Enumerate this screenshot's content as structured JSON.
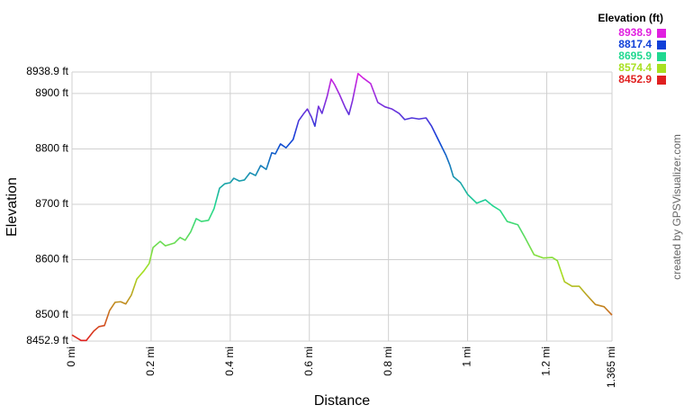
{
  "chart_data": {
    "type": "line",
    "x_label": "Distance",
    "y_label": "Elevation",
    "credit": "created by GPSVisualizer.com",
    "color_scale": {
      "title": "Elevation (ft)",
      "stops": [
        {
          "value": 8938.9,
          "color": "#e020e0"
        },
        {
          "value": 8817.4,
          "color": "#1040d8"
        },
        {
          "value": 8695.9,
          "color": "#20d890"
        },
        {
          "value": 8574.4,
          "color": "#a8e020"
        },
        {
          "value": 8452.9,
          "color": "#e02020"
        }
      ]
    },
    "x": [
      0,
      0.023,
      0.036,
      0.055,
      0.068,
      0.082,
      0.095,
      0.109,
      0.123,
      0.136,
      0.15,
      0.164,
      0.182,
      0.195,
      0.205,
      0.223,
      0.236,
      0.259,
      0.273,
      0.286,
      0.3,
      0.314,
      0.327,
      0.345,
      0.359,
      0.373,
      0.386,
      0.4,
      0.409,
      0.423,
      0.436,
      0.45,
      0.464,
      0.477,
      0.491,
      0.505,
      0.514,
      0.527,
      0.541,
      0.559,
      0.573,
      0.586,
      0.595,
      0.605,
      0.614,
      0.623,
      0.632,
      0.645,
      0.655,
      0.664,
      0.677,
      0.691,
      0.7,
      0.709,
      0.723,
      0.736,
      0.755,
      0.773,
      0.791,
      0.809,
      0.827,
      0.841,
      0.859,
      0.877,
      0.895,
      0.909,
      0.927,
      0.945,
      0.955,
      0.964,
      0.982,
      1.0,
      1.023,
      1.045,
      1.064,
      1.082,
      1.1,
      1.127,
      1.145,
      1.168,
      1.191,
      1.214,
      1.227,
      1.245,
      1.264,
      1.282,
      1.3,
      1.323,
      1.345,
      1.365
    ],
    "values": [
      8464,
      8454,
      8454,
      8471,
      8479,
      8481,
      8508,
      8523,
      8524,
      8520,
      8536,
      8565,
      8580,
      8593,
      8622,
      8633,
      8625,
      8630,
      8640,
      8635,
      8650,
      8674,
      8669,
      8671,
      8692,
      8729,
      8737,
      8739,
      8747,
      8742,
      8744,
      8757,
      8752,
      8770,
      8763,
      8793,
      8791,
      8809,
      8802,
      8817,
      8851,
      8864,
      8872,
      8858,
      8841,
      8877,
      8864,
      8895,
      8926,
      8916,
      8897,
      8874,
      8862,
      8887,
      8936,
      8928,
      8918,
      8884,
      8876,
      8872,
      8864,
      8853,
      8856,
      8854,
      8856,
      8841,
      8815,
      8789,
      8771,
      8750,
      8739,
      8718,
      8702,
      8708,
      8697,
      8689,
      8669,
      8663,
      8640,
      8609,
      8603,
      8604,
      8598,
      8560,
      8552,
      8552,
      8537,
      8519,
      8515,
      8500
    ],
    "xlim": [
      0,
      1.365
    ],
    "ylim": [
      8452.9,
      8938.9
    ],
    "xticks": [
      {
        "value": 0,
        "label": "0 mi"
      },
      {
        "value": 0.2,
        "label": "0.2 mi"
      },
      {
        "value": 0.4,
        "label": "0.4 mi"
      },
      {
        "value": 0.6,
        "label": "0.6 mi"
      },
      {
        "value": 0.8,
        "label": "0.8 mi"
      },
      {
        "value": 1,
        "label": "1 mi"
      },
      {
        "value": 1.2,
        "label": "1.2 mi"
      },
      {
        "value": 1.365,
        "label": "1.365 mi"
      }
    ],
    "yticks": [
      {
        "value": 8452.9,
        "label": "8452.9 ft"
      },
      {
        "value": 8500,
        "label": "8500 ft"
      },
      {
        "value": 8600,
        "label": "8600 ft"
      },
      {
        "value": 8700,
        "label": "8700 ft"
      },
      {
        "value": 8800,
        "label": "8800 ft"
      },
      {
        "value": 8900,
        "label": "8900 ft"
      },
      {
        "value": 8938.9,
        "label": "8938.9 ft"
      }
    ],
    "grid": true
  }
}
